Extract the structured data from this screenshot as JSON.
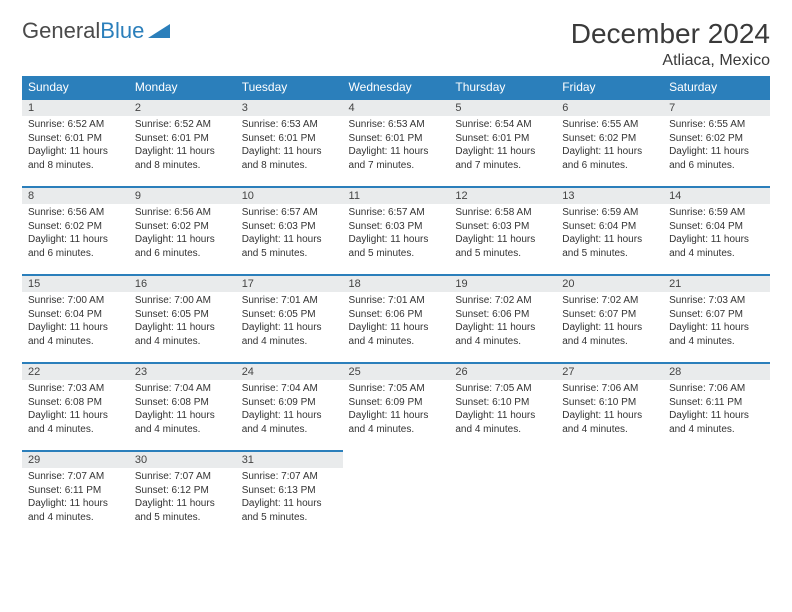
{
  "logo": {
    "text1": "General",
    "text2": "Blue"
  },
  "title": "December 2024",
  "location": "Atliaca, Mexico",
  "colors": {
    "header_bg": "#2b7fbb",
    "header_text": "#ffffff",
    "daynum_bg": "#e9ebec",
    "border": "#2b7fbb",
    "logo_gray": "#4a4a4a",
    "logo_blue": "#2b7fbb"
  },
  "day_headers": [
    "Sunday",
    "Monday",
    "Tuesday",
    "Wednesday",
    "Thursday",
    "Friday",
    "Saturday"
  ],
  "weeks": [
    [
      {
        "n": "1",
        "sr": "6:52 AM",
        "ss": "6:01 PM",
        "dl": "11 hours and 8 minutes."
      },
      {
        "n": "2",
        "sr": "6:52 AM",
        "ss": "6:01 PM",
        "dl": "11 hours and 8 minutes."
      },
      {
        "n": "3",
        "sr": "6:53 AM",
        "ss": "6:01 PM",
        "dl": "11 hours and 8 minutes."
      },
      {
        "n": "4",
        "sr": "6:53 AM",
        "ss": "6:01 PM",
        "dl": "11 hours and 7 minutes."
      },
      {
        "n": "5",
        "sr": "6:54 AM",
        "ss": "6:01 PM",
        "dl": "11 hours and 7 minutes."
      },
      {
        "n": "6",
        "sr": "6:55 AM",
        "ss": "6:02 PM",
        "dl": "11 hours and 6 minutes."
      },
      {
        "n": "7",
        "sr": "6:55 AM",
        "ss": "6:02 PM",
        "dl": "11 hours and 6 minutes."
      }
    ],
    [
      {
        "n": "8",
        "sr": "6:56 AM",
        "ss": "6:02 PM",
        "dl": "11 hours and 6 minutes."
      },
      {
        "n": "9",
        "sr": "6:56 AM",
        "ss": "6:02 PM",
        "dl": "11 hours and 6 minutes."
      },
      {
        "n": "10",
        "sr": "6:57 AM",
        "ss": "6:03 PM",
        "dl": "11 hours and 5 minutes."
      },
      {
        "n": "11",
        "sr": "6:57 AM",
        "ss": "6:03 PM",
        "dl": "11 hours and 5 minutes."
      },
      {
        "n": "12",
        "sr": "6:58 AM",
        "ss": "6:03 PM",
        "dl": "11 hours and 5 minutes."
      },
      {
        "n": "13",
        "sr": "6:59 AM",
        "ss": "6:04 PM",
        "dl": "11 hours and 5 minutes."
      },
      {
        "n": "14",
        "sr": "6:59 AM",
        "ss": "6:04 PM",
        "dl": "11 hours and 4 minutes."
      }
    ],
    [
      {
        "n": "15",
        "sr": "7:00 AM",
        "ss": "6:04 PM",
        "dl": "11 hours and 4 minutes."
      },
      {
        "n": "16",
        "sr": "7:00 AM",
        "ss": "6:05 PM",
        "dl": "11 hours and 4 minutes."
      },
      {
        "n": "17",
        "sr": "7:01 AM",
        "ss": "6:05 PM",
        "dl": "11 hours and 4 minutes."
      },
      {
        "n": "18",
        "sr": "7:01 AM",
        "ss": "6:06 PM",
        "dl": "11 hours and 4 minutes."
      },
      {
        "n": "19",
        "sr": "7:02 AM",
        "ss": "6:06 PM",
        "dl": "11 hours and 4 minutes."
      },
      {
        "n": "20",
        "sr": "7:02 AM",
        "ss": "6:07 PM",
        "dl": "11 hours and 4 minutes."
      },
      {
        "n": "21",
        "sr": "7:03 AM",
        "ss": "6:07 PM",
        "dl": "11 hours and 4 minutes."
      }
    ],
    [
      {
        "n": "22",
        "sr": "7:03 AM",
        "ss": "6:08 PM",
        "dl": "11 hours and 4 minutes."
      },
      {
        "n": "23",
        "sr": "7:04 AM",
        "ss": "6:08 PM",
        "dl": "11 hours and 4 minutes."
      },
      {
        "n": "24",
        "sr": "7:04 AM",
        "ss": "6:09 PM",
        "dl": "11 hours and 4 minutes."
      },
      {
        "n": "25",
        "sr": "7:05 AM",
        "ss": "6:09 PM",
        "dl": "11 hours and 4 minutes."
      },
      {
        "n": "26",
        "sr": "7:05 AM",
        "ss": "6:10 PM",
        "dl": "11 hours and 4 minutes."
      },
      {
        "n": "27",
        "sr": "7:06 AM",
        "ss": "6:10 PM",
        "dl": "11 hours and 4 minutes."
      },
      {
        "n": "28",
        "sr": "7:06 AM",
        "ss": "6:11 PM",
        "dl": "11 hours and 4 minutes."
      }
    ],
    [
      {
        "n": "29",
        "sr": "7:07 AM",
        "ss": "6:11 PM",
        "dl": "11 hours and 4 minutes."
      },
      {
        "n": "30",
        "sr": "7:07 AM",
        "ss": "6:12 PM",
        "dl": "11 hours and 5 minutes."
      },
      {
        "n": "31",
        "sr": "7:07 AM",
        "ss": "6:13 PM",
        "dl": "11 hours and 5 minutes."
      },
      null,
      null,
      null,
      null
    ]
  ]
}
